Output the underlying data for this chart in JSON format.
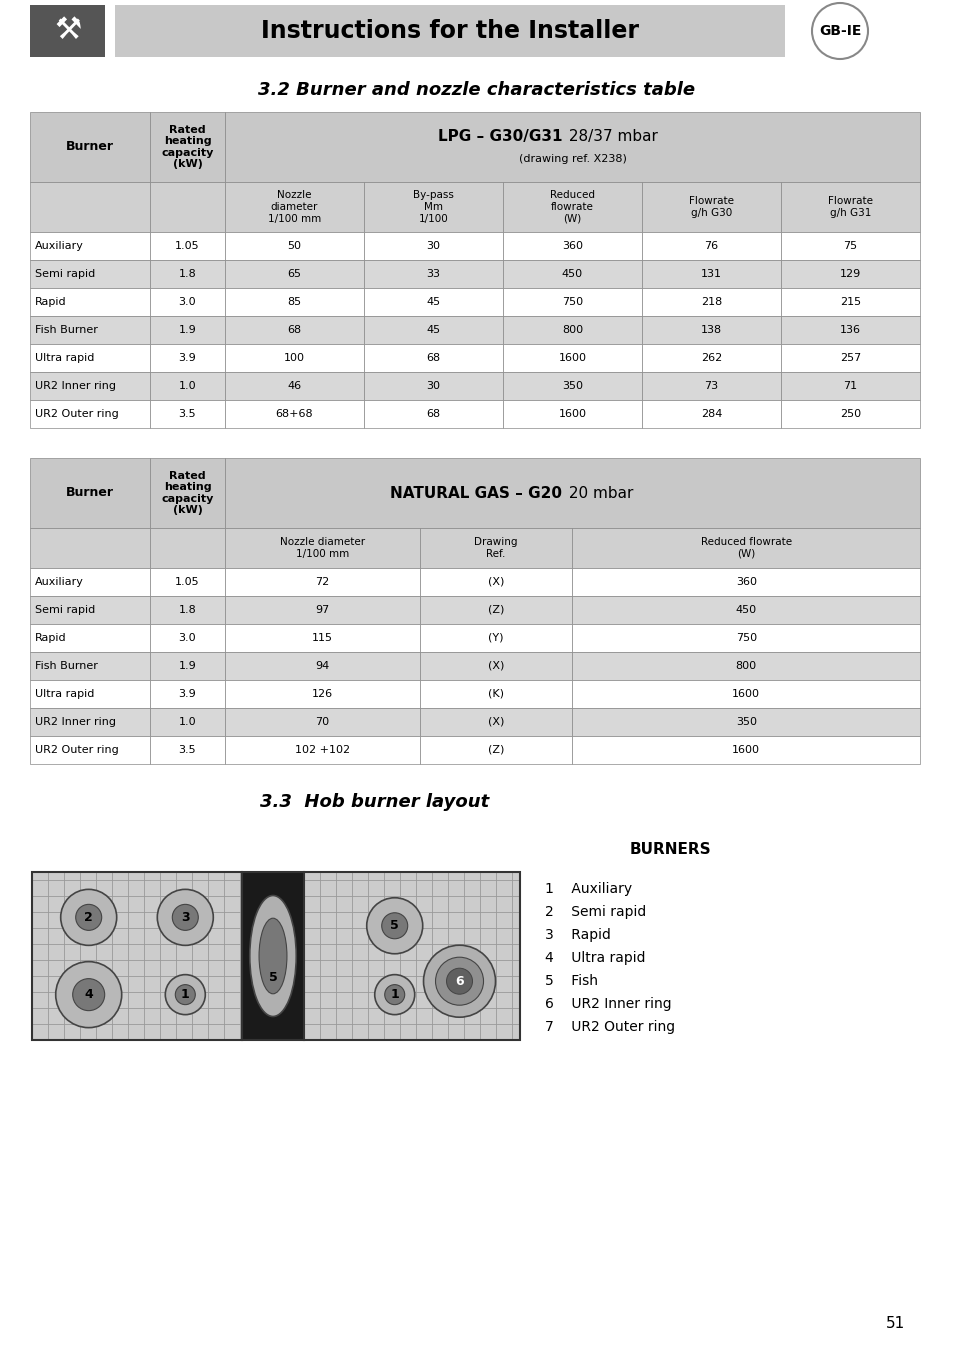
{
  "page_title": "Instructions for the Installer",
  "section1_title": "3.2 Burner and nozzle characteristics table",
  "section2_title": "3.3  Hob burner layout",
  "burners_label": "BURNERS",
  "burner_list": [
    "1    Auxiliary",
    "2    Semi rapid",
    "3    Rapid",
    "4    Ultra rapid",
    "5    Fish",
    "6    UR2 Inner ring",
    "7    UR2 Outer ring"
  ],
  "lpg_header_bold": "LPG – G30/G31",
  "lpg_header_normal": " 28/37 mbar",
  "lpg_subheader": "(drawing ref. X238)",
  "lpg_col_headers": [
    "Nozzle\ndiameter\n1/100 mm",
    "By-pass\nMm\n1/100",
    "Reduced\nflowrate\n(W)",
    "Flowrate\ng/h G30",
    "Flowrate\ng/h G31"
  ],
  "ng_header_bold": "NATURAL GAS – G20",
  "ng_header_normal": " 20 mbar",
  "ng_col_headers": [
    "Nozzle diameter\n1/100 mm",
    "Drawing\nRef.",
    "Reduced flowrate\n(W)"
  ],
  "burner_col": "Burner",
  "rated_col": "Rated\nheating\ncapacity\n(kW)",
  "burners": [
    "Auxiliary",
    "Semi rapid",
    "Rapid",
    "Fish Burner",
    "Ultra rapid",
    "UR2 Inner ring",
    "UR2 Outer ring"
  ],
  "rated": [
    "1.05",
    "1.8",
    "3.0",
    "1.9",
    "3.9",
    "1.0",
    "3.5"
  ],
  "lpg_data": [
    [
      "50",
      "30",
      "360",
      "76",
      "75"
    ],
    [
      "65",
      "33",
      "450",
      "131",
      "129"
    ],
    [
      "85",
      "45",
      "750",
      "218",
      "215"
    ],
    [
      "68",
      "45",
      "800",
      "138",
      "136"
    ],
    [
      "100",
      "68",
      "1600",
      "262",
      "257"
    ],
    [
      "46",
      "30",
      "350",
      "73",
      "71"
    ],
    [
      "68+68",
      "68",
      "1600",
      "284",
      "250"
    ]
  ],
  "ng_data": [
    [
      "72",
      "(X)",
      "360"
    ],
    [
      "97",
      "(Z)",
      "450"
    ],
    [
      "115",
      "(Y)",
      "750"
    ],
    [
      "94",
      "(X)",
      "800"
    ],
    [
      "126",
      "(K)",
      "1600"
    ],
    [
      "70",
      "(X)",
      "350"
    ],
    [
      "102 +102",
      "(Z)",
      "1600"
    ]
  ],
  "bg_color": "#ffffff",
  "header_bg": "#c8c8c8",
  "row_alt1": "#ffffff",
  "row_alt2": "#d8d8d8",
  "col_subheader_bg": "#d0d0d0",
  "page_number": "51"
}
